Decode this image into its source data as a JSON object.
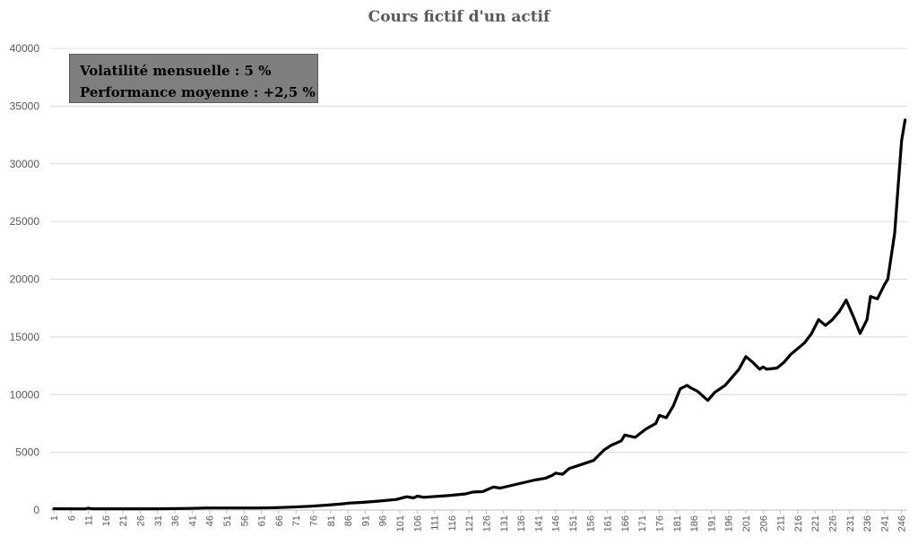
{
  "chart_data": {
    "type": "line",
    "title": "Cours fictif d'un actif",
    "xlabel": "",
    "ylabel": "",
    "ylim": [
      0,
      40000
    ],
    "yticks": [
      0,
      5000,
      10000,
      15000,
      20000,
      25000,
      30000,
      35000,
      40000
    ],
    "xlim": [
      1,
      247
    ],
    "xticks": [
      1,
      6,
      11,
      16,
      21,
      26,
      31,
      36,
      41,
      46,
      51,
      56,
      61,
      66,
      71,
      76,
      81,
      86,
      91,
      96,
      101,
      106,
      111,
      116,
      121,
      126,
      131,
      136,
      141,
      146,
      151,
      156,
      161,
      166,
      171,
      176,
      181,
      186,
      191,
      196,
      201,
      206,
      211,
      216,
      221,
      226,
      231,
      236,
      241,
      246
    ],
    "grid": "horizontal",
    "line_color": "#000000",
    "annotations": [
      "Volatilité mensuelle : 5 %",
      "Performance moyenne : +2,5 %"
    ],
    "series": [
      {
        "x": [
          1,
          10,
          11,
          12,
          20,
          30,
          40,
          45,
          60,
          65,
          70,
          75,
          80,
          85,
          86,
          90,
          95,
          100,
          103,
          105,
          106,
          108,
          110,
          115,
          120,
          122,
          125,
          128,
          130,
          135,
          140,
          143,
          145,
          146,
          148,
          150,
          153,
          155,
          157,
          160,
          162,
          165,
          166,
          169,
          172,
          175,
          176,
          178,
          180,
          182,
          184,
          185,
          187,
          190,
          192,
          195,
          197,
          199,
          201,
          203,
          205,
          206,
          207,
          210,
          212,
          214,
          216,
          218,
          220,
          222,
          224,
          226,
          228,
          230,
          232,
          234,
          236,
          237,
          239,
          241,
          242,
          244,
          245,
          246,
          247
        ],
        "y": [
          120,
          100,
          160,
          110,
          110,
          110,
          140,
          180,
          180,
          200,
          260,
          330,
          430,
          550,
          600,
          660,
          780,
          920,
          1150,
          1050,
          1200,
          1100,
          1150,
          1250,
          1400,
          1550,
          1600,
          2000,
          1900,
          2250,
          2600,
          2750,
          3000,
          3200,
          3100,
          3600,
          3900,
          4100,
          4300,
          5200,
          5600,
          6000,
          6500,
          6300,
          7000,
          7500,
          8200,
          8000,
          9000,
          10500,
          10800,
          10600,
          10300,
          9500,
          10200,
          10800,
          11500,
          12200,
          13300,
          12800,
          12200,
          12400,
          12200,
          12300,
          12800,
          13500,
          14000,
          14500,
          15300,
          16500,
          16000,
          16500,
          17200,
          18200,
          16800,
          15300,
          16500,
          18500,
          18300,
          19500,
          20000,
          24000,
          28000,
          32000,
          33800
        ]
      }
    ]
  }
}
